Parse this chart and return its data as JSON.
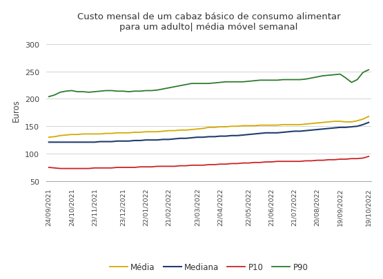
{
  "title": "Custo mensal de um cabaz básico de consumo alimentar\npara um adulto| média móvel semanal",
  "ylabel": "Euros",
  "ylim": [
    50,
    310
  ],
  "yticks": [
    50,
    100,
    150,
    200,
    250,
    300
  ],
  "background_color": "#ffffff",
  "line_colors": {
    "media": "#d4aa00",
    "mediana": "#1f3d6e",
    "p10": "#cc2222",
    "p90": "#2d7a2d"
  },
  "legend_labels": [
    "Média",
    "Mediana",
    "P10",
    "P90"
  ],
  "media_values": [
    130,
    131,
    133,
    134,
    135,
    135,
    136,
    136,
    136,
    136,
    137,
    137,
    138,
    138,
    138,
    139,
    139,
    140,
    140,
    140,
    141,
    142,
    142,
    143,
    143,
    144,
    145,
    146,
    148,
    148,
    149,
    149,
    150,
    150,
    151,
    151,
    151,
    152,
    152,
    152,
    152,
    153,
    153,
    153,
    153,
    154,
    155,
    156,
    157,
    158,
    159,
    159,
    158,
    158,
    160,
    163,
    168
  ],
  "mediana_values": [
    121,
    121,
    121,
    121,
    121,
    121,
    121,
    121,
    121,
    122,
    122,
    122,
    123,
    123,
    123,
    124,
    124,
    125,
    125,
    125,
    126,
    126,
    127,
    128,
    128,
    129,
    130,
    130,
    131,
    131,
    132,
    132,
    133,
    133,
    134,
    135,
    136,
    137,
    138,
    138,
    138,
    139,
    140,
    141,
    141,
    142,
    143,
    144,
    145,
    146,
    147,
    148,
    148,
    149,
    150,
    153,
    157
  ],
  "p10_values": [
    75,
    74,
    73,
    73,
    73,
    73,
    73,
    73,
    74,
    74,
    74,
    74,
    75,
    75,
    75,
    75,
    76,
    76,
    76,
    77,
    77,
    77,
    77,
    78,
    78,
    79,
    79,
    79,
    80,
    80,
    81,
    81,
    82,
    82,
    83,
    83,
    84,
    84,
    85,
    85,
    86,
    86,
    86,
    86,
    86,
    87,
    87,
    88,
    88,
    89,
    89,
    90,
    90,
    91,
    91,
    92,
    95
  ],
  "p90_values": [
    204,
    207,
    212,
    214,
    215,
    213,
    213,
    212,
    213,
    214,
    215,
    215,
    214,
    214,
    213,
    214,
    214,
    215,
    215,
    216,
    218,
    220,
    222,
    224,
    226,
    228,
    228,
    228,
    228,
    229,
    230,
    231,
    231,
    231,
    231,
    232,
    233,
    234,
    234,
    234,
    234,
    235,
    235,
    235,
    235,
    236,
    238,
    240,
    242,
    243,
    244,
    245,
    238,
    230,
    235,
    248,
    253
  ],
  "xtick_labels": [
    "24/09/2021",
    "24/10/2021",
    "23/11/2021",
    "23/12/2021",
    "22/01/2022",
    "21/02/2022",
    "23/03/2022",
    "22/04/2022",
    "22/05/2022",
    "21/06/2022",
    "21/07/2022",
    "20/08/2022",
    "19/09/2022",
    "19/10/2022"
  ],
  "xtick_positions": [
    0,
    4,
    8,
    13,
    17,
    21,
    26,
    30,
    35,
    39,
    43,
    47,
    51,
    56
  ]
}
